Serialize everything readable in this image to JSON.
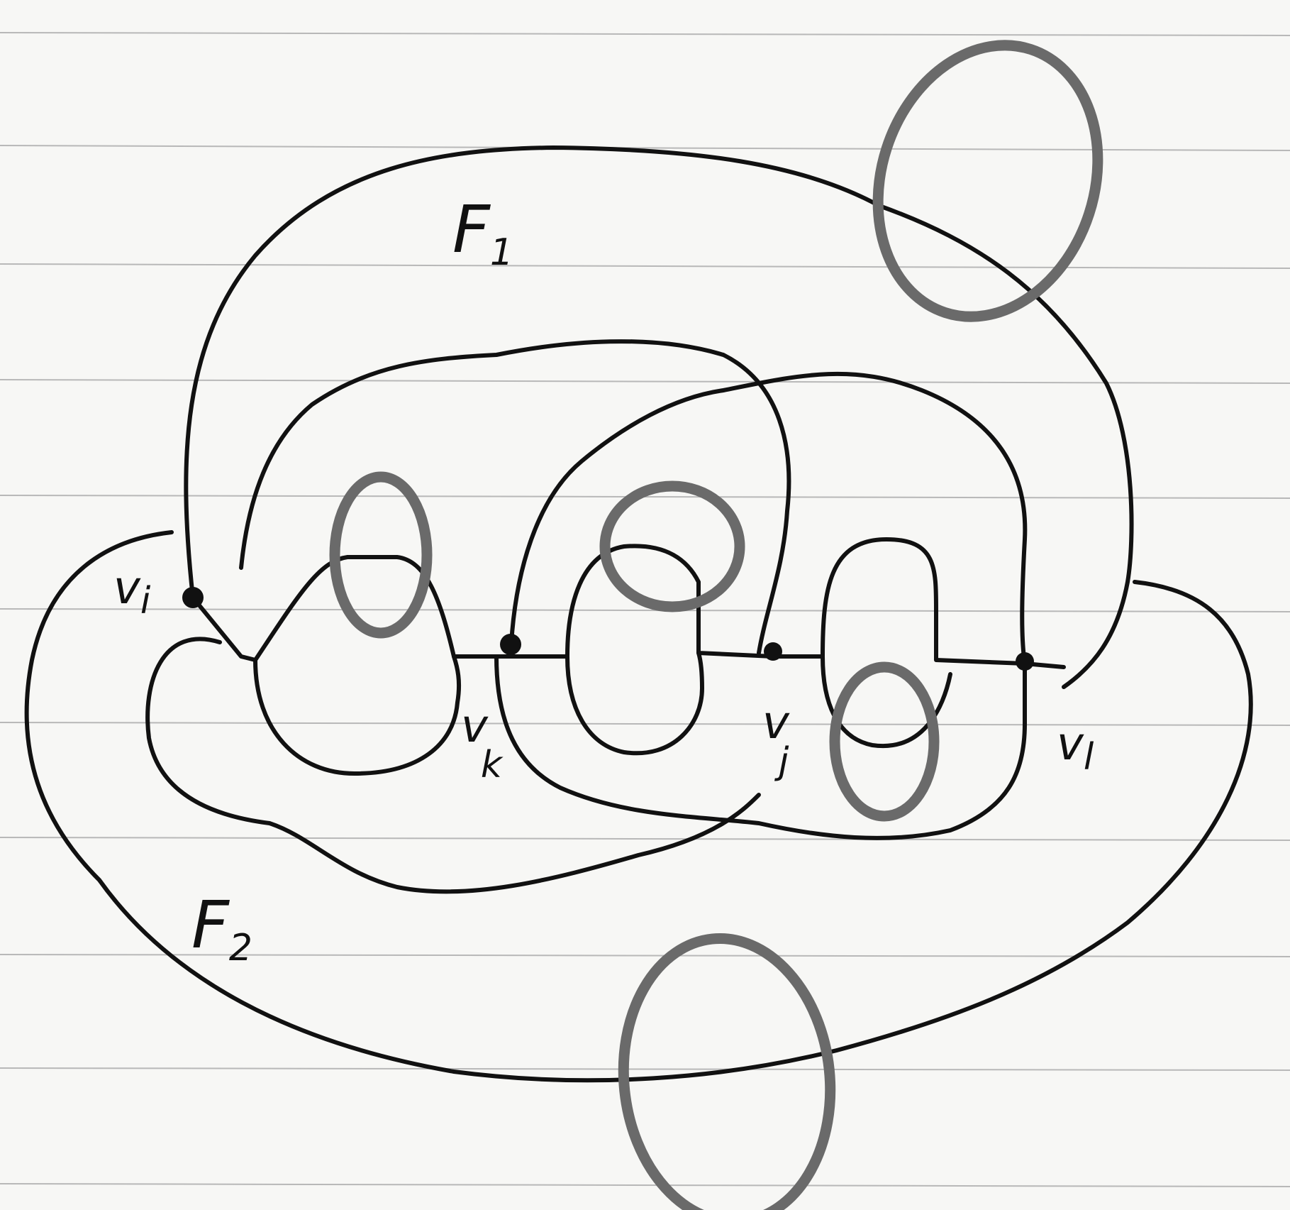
{
  "faces": [
    {
      "name": "F",
      "sub": "1"
    },
    {
      "name": "F",
      "sub": "2"
    }
  ],
  "vertices": [
    {
      "name": "v",
      "sub": "i"
    },
    {
      "name": "v",
      "sub": "k"
    },
    {
      "name": "v",
      "sub": "j"
    },
    {
      "name": "v",
      "sub": "l"
    }
  ],
  "colors": {
    "background": "#f7f7f5",
    "ruled_lines": "#b8b8b8",
    "black_curves": "#111111",
    "grey_loops": "#6a6a6a"
  }
}
